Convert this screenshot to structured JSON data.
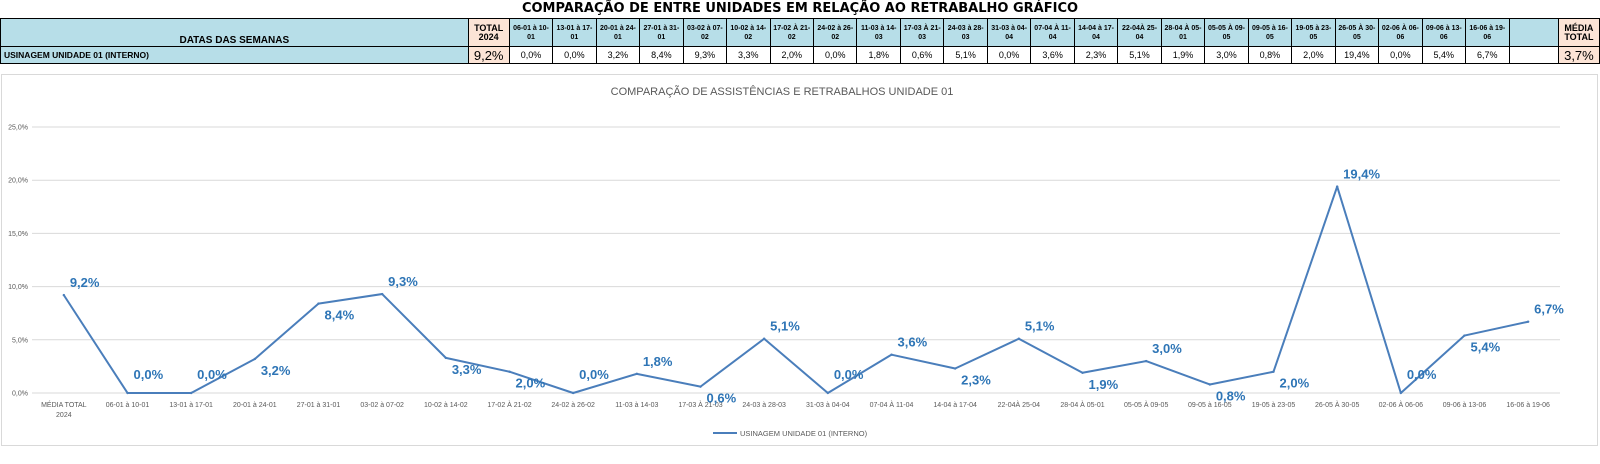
{
  "sheet": {
    "title": "COMPARAÇÃO DE ENTRE UNIDADES EM RELAÇÃO AO RETRABALHO GRÁFICO",
    "header_label": "DATAS DAS SEMANAS",
    "total_header": "TOTAL 2024",
    "avg_header": "MÉDIA TOTAL",
    "row_label": "USINAGEM UNIDADE 01 (INTERNO)",
    "row_total": "9,2%",
    "row_avg": "3,7%",
    "weeks": [
      {
        "header": "06-01 à 10-01",
        "value": "0,0%"
      },
      {
        "header": "13-01 à 17-01",
        "value": "0,0%"
      },
      {
        "header": "20-01 à 24-01",
        "value": "3,2%"
      },
      {
        "header": "27-01 à 31-01",
        "value": "8,4%"
      },
      {
        "header": "03-02 à 07-02",
        "value": "9,3%"
      },
      {
        "header": "10-02 à 14-02",
        "value": "3,3%"
      },
      {
        "header": "17-02 À 21-02",
        "value": "2,0%"
      },
      {
        "header": "24-02 à 26-02",
        "value": "0,0%"
      },
      {
        "header": "11-03 à 14-03",
        "value": "1,8%"
      },
      {
        "header": "17-03 À 21-03",
        "value": "0,6%"
      },
      {
        "header": "24-03 à 28-03",
        "value": "5,1%"
      },
      {
        "header": "31-03 à 04-04",
        "value": "0,0%"
      },
      {
        "header": "07-04 À 11-04",
        "value": "3,6%"
      },
      {
        "header": "14-04 à 17-04",
        "value": "2,3%"
      },
      {
        "header": "22-04À 25-04",
        "value": "5,1%"
      },
      {
        "header": "28-04 À 05-01",
        "value": "1,9%"
      },
      {
        "header": "05-05 À 09-05",
        "value": "3,0%"
      },
      {
        "header": "09-05 à 16-05",
        "value": "0,8%"
      },
      {
        "header": "19-05 à 23-05",
        "value": "2,0%"
      },
      {
        "header": "26-05 À 30-05",
        "value": "19,4%"
      },
      {
        "header": "02-06 À 06-06",
        "value": "0,0%"
      },
      {
        "header": "09-06 à 13-06",
        "value": "5,4%"
      },
      {
        "header": "16-06 à 19-06",
        "value": "6,7%"
      }
    ]
  },
  "chart_data": {
    "type": "line",
    "title": "COMPARAÇÃO DE ASSISTÊNCIAS E RETRABALHOS UNIDADE 01",
    "xlabel": "",
    "ylabel": "",
    "ylim": [
      0,
      25
    ],
    "yticks": [
      "0,0%",
      "5,0%",
      "10,0%",
      "15,0%",
      "20,0%",
      "25,0%"
    ],
    "grid": true,
    "legend_position": "bottom",
    "categories": [
      "MÉDIA TOTAL 2024",
      "06-01 à 10-01",
      "13-01 à 17-01",
      "20-01 à 24-01",
      "27-01 à 31-01",
      "03-02 à 07-02",
      "10-02 à 14-02",
      "17-02 À 21-02",
      "24-02 à 26-02",
      "11-03 à 14-03",
      "17-03 À 21-03",
      "24-03 à 28-03",
      "31-03 à 04-04",
      "07-04 À 11-04",
      "14-04 à 17-04",
      "22-04À 25-04",
      "28-04 À 05-01",
      "05-05 À 09-05",
      "09-05 à 16-05",
      "19-05 à 23-05",
      "26-05 À 30-05",
      "02-06 À 06-06",
      "09-06 à 13-06",
      "16-06 à 19-06"
    ],
    "series": [
      {
        "name": "USINAGEM UNIDADE 01 (INTERNO)",
        "color": "#4a7ebb",
        "values": [
          9.2,
          0.0,
          0.0,
          3.2,
          8.4,
          9.3,
          3.3,
          2.0,
          0.0,
          1.8,
          0.6,
          5.1,
          0.0,
          3.6,
          2.3,
          5.1,
          1.9,
          3.0,
          0.8,
          2.0,
          19.4,
          0.0,
          5.4,
          6.7
        ],
        "labels": [
          "9,2%",
          "0,0%",
          "0,0%",
          "3,2%",
          "8,4%",
          "9,3%",
          "3,3%",
          "2,0%",
          "0,0%",
          "1,8%",
          "0,6%",
          "5,1%",
          "0,0%",
          "3,6%",
          "2,3%",
          "5,1%",
          "1,9%",
          "3,0%",
          "0,8%",
          "2,0%",
          "19,4%",
          "0,0%",
          "5,4%",
          "6,7%"
        ]
      }
    ],
    "label_color": "#2e75b6"
  }
}
